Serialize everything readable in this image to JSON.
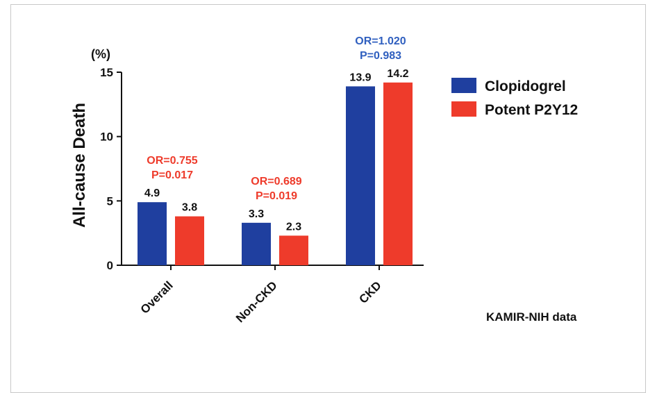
{
  "chart_data": {
    "type": "bar",
    "categories": [
      "Overall",
      "Non-CKD",
      "CKD"
    ],
    "series": [
      {
        "name": "Clopidogrel",
        "color": "#1f3f9f",
        "values": [
          4.9,
          3.3,
          13.9
        ]
      },
      {
        "name": "Potent P2Y12",
        "color": "#ee3b2b",
        "values": [
          3.8,
          2.3,
          14.2
        ]
      }
    ],
    "value_labels": [
      [
        "4.9",
        "3.3",
        "13.9"
      ],
      [
        "3.8",
        "2.3",
        "14.2"
      ]
    ],
    "ylabel": "All-cause Death",
    "yunit": "(%)",
    "ylim": [
      0,
      15
    ],
    "yticks": [
      "0",
      "5",
      "10",
      "15"
    ],
    "annotations": [
      {
        "lines": [
          "OR=0.755",
          "P=0.017"
        ],
        "color": "#ee3b2b"
      },
      {
        "lines": [
          "OR=0.689",
          "P=0.019"
        ],
        "color": "#ee3b2b"
      },
      {
        "lines": [
          "OR=1.020",
          "P=0.983"
        ],
        "color": "#2f5fbf"
      }
    ],
    "legend_position": "right",
    "grid": false,
    "source_note": "KAMIR-NIH data"
  }
}
